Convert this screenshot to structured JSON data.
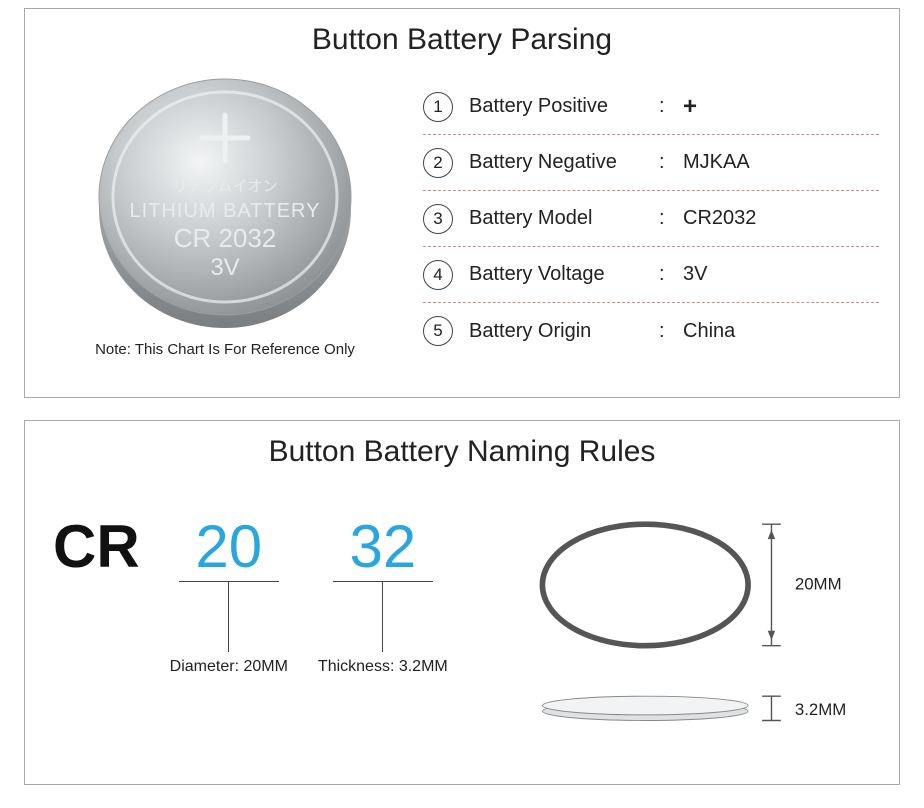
{
  "top": {
    "title": "Button Battery Parsing",
    "battery": {
      "plus": "+",
      "jp_text": "リチウムイオン",
      "en_text": "LITHIUM BATTERY",
      "model": "CR 2032",
      "voltage": "3V"
    },
    "note": "Note: This Chart Is For Reference Only",
    "specs": [
      {
        "n": "1",
        "label": "Battery Positive",
        "value": "+",
        "is_plus": true
      },
      {
        "n": "2",
        "label": "Battery Negative",
        "value": "MJKAA"
      },
      {
        "n": "3",
        "label": "Battery Model",
        "value": "CR2032"
      },
      {
        "n": "4",
        "label": "Battery Voltage",
        "value": "3V"
      },
      {
        "n": "5",
        "label": "Battery Origin",
        "value": "China"
      }
    ],
    "divider_color": "#d4a0a0",
    "circle_border": "#444444"
  },
  "bottom": {
    "title": "Button Battery Naming Rules",
    "code": {
      "prefix": "CR",
      "seg1": {
        "num": "20",
        "label": "Diameter: 20MM"
      },
      "seg2": {
        "num": "32",
        "label": "Thickness: 3.2MM"
      }
    },
    "dims": {
      "diameter": "20MM",
      "thickness": "3.2MM"
    },
    "accent_color": "#2aa6df",
    "line_color": "#444444"
  },
  "style": {
    "panel_border": "#aaaaaa",
    "text_color": "#222222",
    "battery_fill": "#bfc3c6",
    "battery_light": "#eef0f1",
    "battery_dark": "#888c8f",
    "battery_text": "#e8ebec"
  }
}
